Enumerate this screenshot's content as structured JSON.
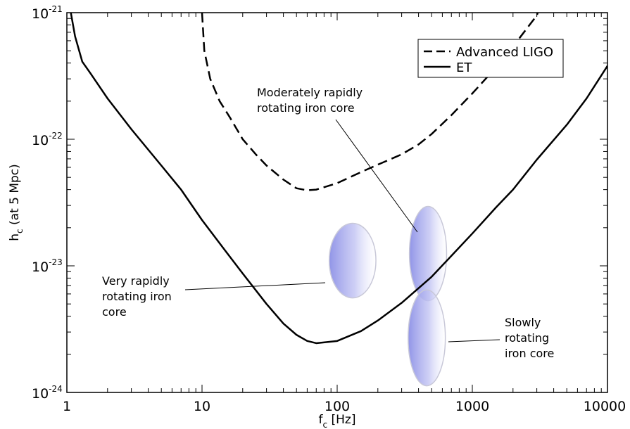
{
  "chart_data": {
    "type": "line",
    "x_scale": "log",
    "y_scale": "log",
    "xlim": [
      1,
      10000
    ],
    "ylim": [
      1e-24,
      1e-21
    ],
    "grid": false,
    "legend_placement": "top-right",
    "xlabel": {
      "main": "f",
      "sub": "c",
      "rest": " [Hz]"
    },
    "ylabel": {
      "main": "h",
      "sub": "c",
      "rest": " (at 5 Mpc)"
    },
    "x_ticks": [
      {
        "value": 1,
        "label": "1"
      },
      {
        "value": 10,
        "label": "10"
      },
      {
        "value": 100,
        "label": "100"
      },
      {
        "value": 1000,
        "label": "1000"
      },
      {
        "value": 10000,
        "label": "10000"
      }
    ],
    "y_ticks": [
      {
        "value": 1e-24,
        "base": "10",
        "exp": "-24"
      },
      {
        "value": 1e-23,
        "base": "10",
        "exp": "-23"
      },
      {
        "value": 1e-22,
        "base": "10",
        "exp": "-22"
      },
      {
        "value": 1e-21,
        "base": "10",
        "exp": "-21"
      }
    ],
    "series": [
      {
        "name": "Advanced LIGO",
        "style": "dashed",
        "color": "#000000",
        "points": [
          [
            10.0,
            1e-21
          ],
          [
            10.4,
            5e-22
          ],
          [
            11.5,
            3e-22
          ],
          [
            13.5,
            2e-22
          ],
          [
            16,
            1.5e-22
          ],
          [
            20,
            1e-22
          ],
          [
            25,
            7.6e-23
          ],
          [
            30,
            6.2e-23
          ],
          [
            40,
            4.8e-23
          ],
          [
            50,
            4.1e-23
          ],
          [
            60,
            3.95e-23
          ],
          [
            70,
            4e-23
          ],
          [
            100,
            4.5e-23
          ],
          [
            150,
            5.5e-23
          ],
          [
            200,
            6.3e-23
          ],
          [
            300,
            7.6e-23
          ],
          [
            400,
            9.1e-23
          ],
          [
            500,
            1.1e-22
          ],
          [
            700,
            1.55e-22
          ],
          [
            1000,
            2.3e-22
          ],
          [
            1500,
            3.7e-22
          ],
          [
            2000,
            5.4e-22
          ],
          [
            3000,
            9.5e-22
          ],
          [
            3050,
            1e-21
          ]
        ]
      },
      {
        "name": "ET",
        "style": "solid",
        "color": "#000000",
        "points": [
          [
            1.07,
            1e-21
          ],
          [
            1.15,
            6.5e-22
          ],
          [
            1.3,
            4.1e-22
          ],
          [
            1.5,
            3.3e-22
          ],
          [
            2,
            2.1e-22
          ],
          [
            3,
            1.2e-22
          ],
          [
            5,
            6.2e-23
          ],
          [
            7,
            4e-23
          ],
          [
            10,
            2.3e-23
          ],
          [
            15,
            1.3e-23
          ],
          [
            20,
            8.7e-24
          ],
          [
            30,
            5e-24
          ],
          [
            40,
            3.5e-24
          ],
          [
            50,
            2.85e-24
          ],
          [
            60,
            2.55e-24
          ],
          [
            70,
            2.45e-24
          ],
          [
            100,
            2.55e-24
          ],
          [
            150,
            3.05e-24
          ],
          [
            200,
            3.7e-24
          ],
          [
            300,
            5.1e-24
          ],
          [
            500,
            8.2e-24
          ],
          [
            700,
            1.2e-23
          ],
          [
            1000,
            1.8e-23
          ],
          [
            1500,
            2.9e-23
          ],
          [
            2000,
            4e-23
          ],
          [
            3000,
            6.9e-23
          ],
          [
            5000,
            1.3e-22
          ],
          [
            7000,
            2.1e-22
          ],
          [
            10000,
            3.8e-22
          ]
        ]
      }
    ],
    "regions": [
      {
        "key": "very_rapidly",
        "label_lines": [
          "Very rapidly",
          "rotating iron",
          "core"
        ],
        "center": [
          130,
          1.1e-23
        ],
        "x_range": [
          88,
          195
        ],
        "y_range": [
          5.4e-24,
          2.1e-23
        ]
      },
      {
        "key": "moderately_rapidly",
        "label_lines": [
          "Moderately rapidly",
          "rotating iron core"
        ],
        "center": [
          470,
          1.25e-23
        ],
        "x_range": [
          345,
          650
        ],
        "y_range": [
          5.4e-24,
          3e-23
        ]
      },
      {
        "key": "slowly",
        "label_lines": [
          "Slowly",
          "rotating",
          "iron core"
        ],
        "center": [
          460,
          2.7e-24
        ],
        "x_range": [
          345,
          650
        ],
        "y_range": [
          1.1e-24,
          6.3e-24
        ]
      }
    ],
    "region_color": "#8b8fe6",
    "legend": [
      {
        "name": "Advanced LIGO",
        "style": "dashed"
      },
      {
        "name": "ET",
        "style": "solid"
      }
    ]
  }
}
